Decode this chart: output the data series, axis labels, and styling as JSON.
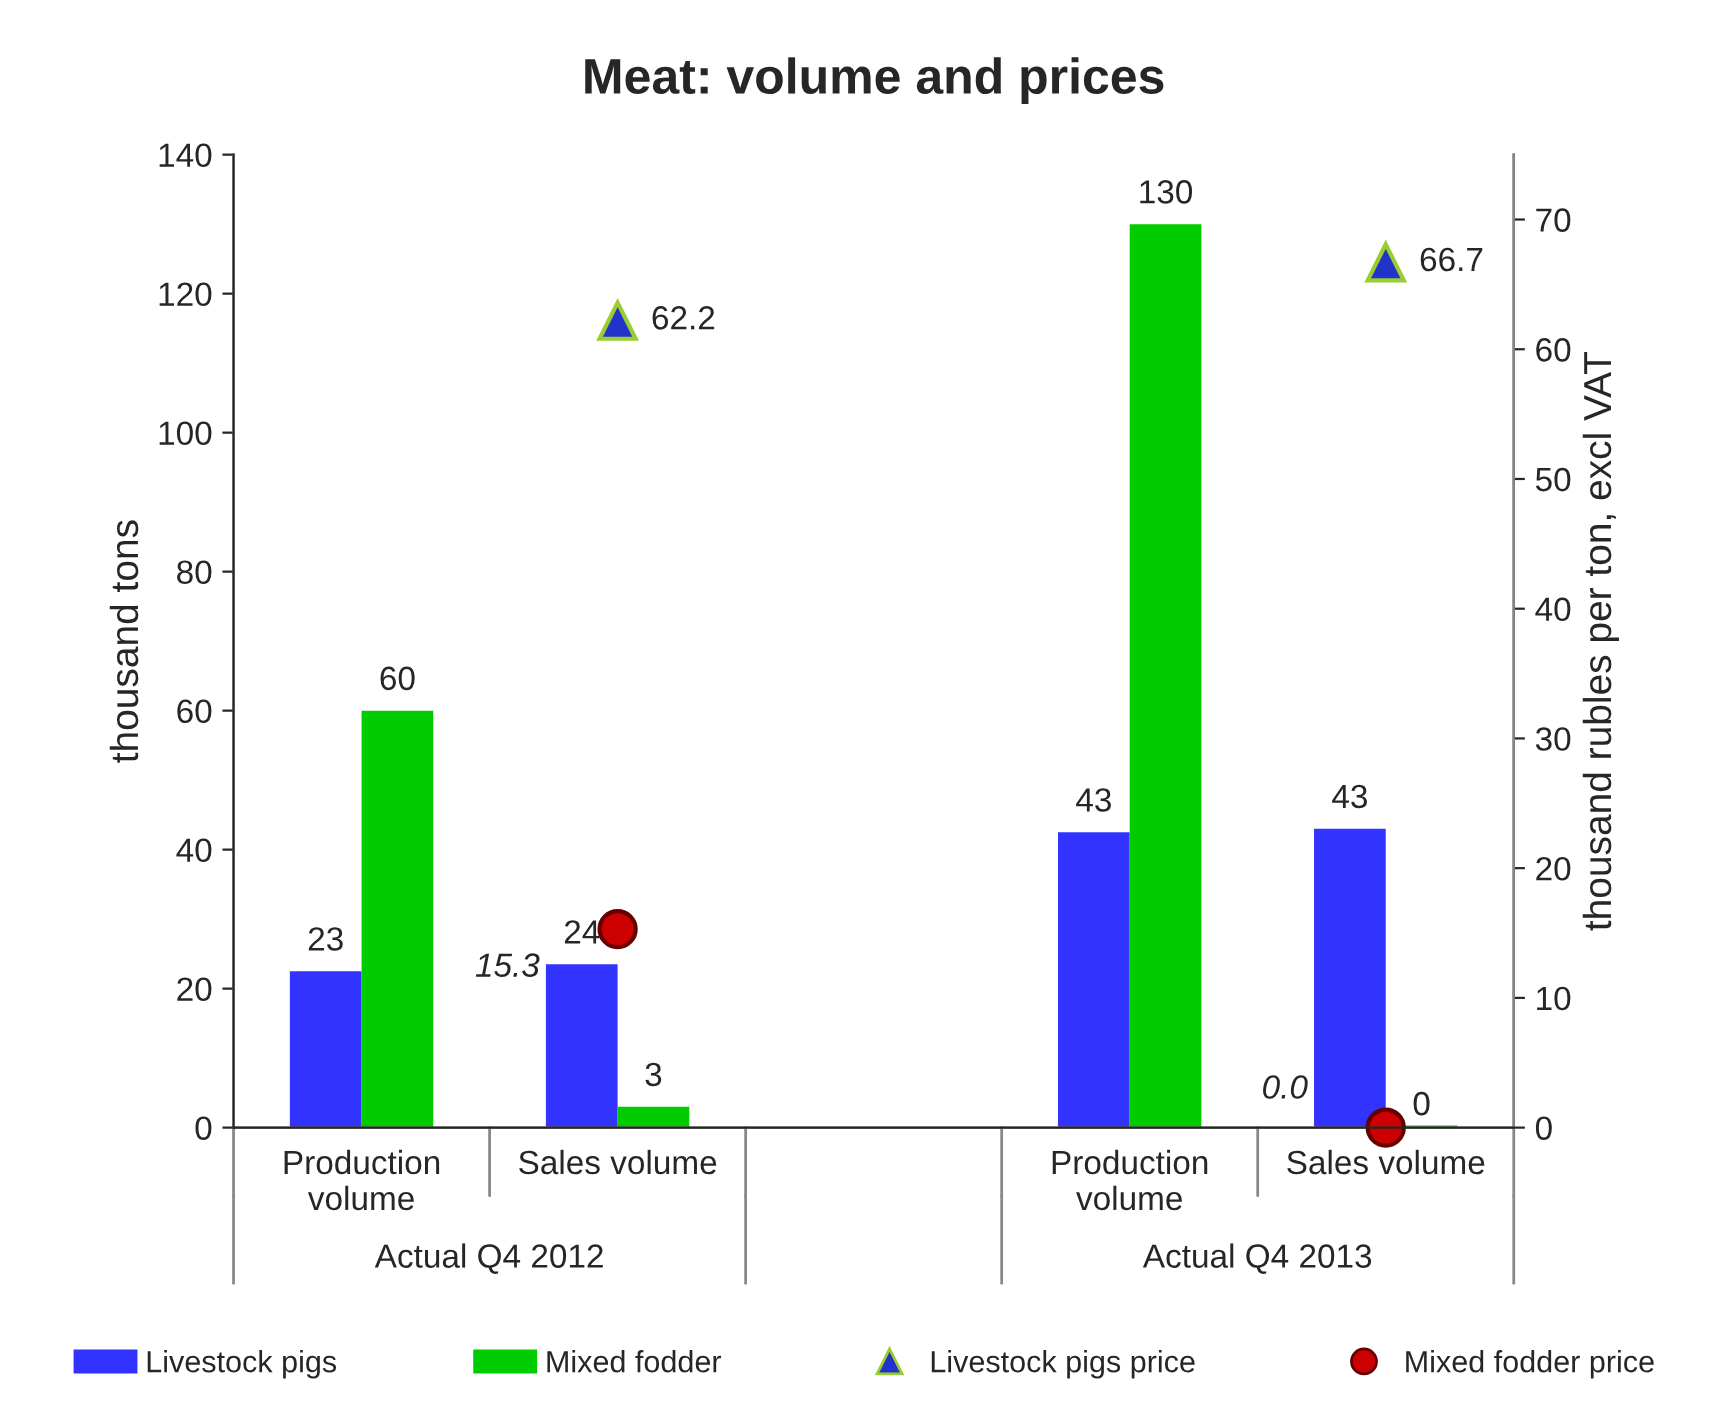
{
  "chart_data": {
    "type": "bar",
    "title": "Meat: volume and prices",
    "categories": [
      "Production volume",
      "Sales volume",
      null,
      "Production volume",
      "Sales volume"
    ],
    "series": [
      {
        "name": "Livestock pigs",
        "color": "#3333ff",
        "values": [
          22.5,
          23.5,
          null,
          42.5,
          43
        ],
        "value_labels": [
          "23",
          "24",
          null,
          "43",
          "43"
        ]
      },
      {
        "name": "Mixed fodder",
        "color": "#00cc00",
        "values": [
          60,
          3,
          null,
          130,
          0
        ],
        "value_labels": [
          "60",
          "3",
          null,
          "130",
          "0"
        ]
      },
      {
        "name": "Livestock pigs price",
        "type": "scatter",
        "axis": "y2",
        "marker": "triangle",
        "color": "#2233cc",
        "values": [
          null,
          62.2,
          null,
          null,
          66.7
        ],
        "value_labels": [
          null,
          "62.2",
          null,
          null,
          "66.7"
        ]
      },
      {
        "name": "Mixed fodder price",
        "type": "scatter",
        "axis": "y2",
        "marker": "circle",
        "color": "#cc0000",
        "values": [
          null,
          15.3,
          null,
          null,
          0.0
        ],
        "value_labels": [
          null,
          "15.3",
          null,
          null,
          "0.0"
        ]
      }
    ],
    "ylabel": "thousand tons",
    "y2label": "thousand rubles per ton, excl VAT",
    "ylim": [
      0,
      140
    ],
    "yticks": [
      0,
      20,
      40,
      60,
      80,
      100,
      120,
      140
    ],
    "y2lim": [
      0,
      75
    ],
    "y2ticks": [
      0,
      10,
      20,
      30,
      40,
      50,
      60,
      70
    ],
    "annotations": [
      "Actual Q4 2012",
      "Actual Q4 2013"
    ],
    "grid": false,
    "legend": "bottom"
  }
}
